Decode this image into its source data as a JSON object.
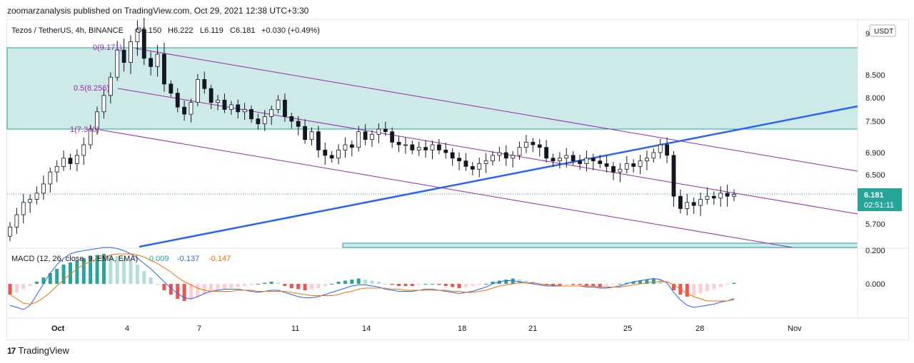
{
  "caption": "zoomarzanalysis published on TradingView.com, Oct 29, 2021 12:38 UTC+3:30",
  "header": {
    "symbol": "Tezos / TetherUS, 4h, BINANCE",
    "o": "O6.150",
    "h": "H6.222",
    "l": "L6.119",
    "c": "C6.181",
    "change": "+0.030 (+0.49%)"
  },
  "currency_badge": "USDT",
  "price_label": {
    "value": "6.181",
    "timer": "02:51:11"
  },
  "macd_header": {
    "name": "MACD (12, 26, close, 9, EMA, EMA)",
    "v1": "0.009",
    "v2": "-0.137",
    "v3": "-0.147"
  },
  "footer": {
    "brand": "TradingView"
  },
  "colors": {
    "up": "#26a69a",
    "down": "#ef5350",
    "zone": "#cde9e8",
    "trend": "#2962ff",
    "channel": "#9c27b0",
    "macd": "#2962ff",
    "signal": "#ff6d00"
  },
  "chart_data": {
    "type": "candlestick",
    "title": "Tezos / TetherUS, 4h, BINANCE",
    "y_axis_labels": [
      "9",
      "8.500",
      "8.000",
      "7.500",
      "6.900",
      "6.500",
      "5.700",
      "0.200"
    ],
    "macd_axis_labels": [
      "0.000"
    ],
    "x_tick_labels": [
      "Oct",
      "4",
      "7",
      "11",
      "14",
      "18",
      "21",
      "25",
      "28",
      "Nov"
    ],
    "fib_labels": [
      "0(9.171)",
      "0.5(8.256)",
      "1(7.340)"
    ],
    "zone": {
      "top": 9.0,
      "bottom": 7.34
    },
    "last_price": 6.181,
    "closes": [
      5.65,
      5.85,
      6.05,
      6.1,
      6.2,
      6.35,
      6.55,
      6.65,
      6.8,
      6.7,
      6.85,
      7.05,
      7.35,
      7.7,
      8.05,
      8.45,
      8.8,
      8.65,
      8.9,
      9.05,
      8.7,
      8.6,
      8.75,
      8.3,
      8.1,
      7.8,
      7.65,
      7.9,
      8.4,
      8.2,
      7.9,
      7.95,
      7.75,
      7.85,
      7.7,
      7.75,
      7.55,
      7.45,
      7.6,
      7.75,
      7.95,
      7.6,
      7.5,
      7.4,
      7.15,
      7.3,
      6.95,
      6.85,
      6.8,
      6.95,
      7.05,
      7.0,
      7.3,
      7.15,
      7.25,
      7.35,
      7.3,
      7.1,
      7.05,
      7.05,
      6.95,
      7.0,
      6.95,
      7.05,
      6.95,
      6.9,
      6.8,
      6.75,
      6.65,
      6.6,
      6.7,
      6.75,
      6.85,
      6.9,
      6.8,
      6.85,
      7.0,
      7.1,
      7.05,
      7.0,
      6.8,
      6.75,
      6.8,
      6.85,
      6.75,
      6.7,
      6.8,
      6.75,
      6.7,
      6.65,
      6.55,
      6.6,
      6.7,
      6.65,
      6.75,
      6.8,
      6.9,
      7.05,
      6.85,
      6.15,
      5.95,
      6.05,
      6.0,
      6.1,
      6.15,
      6.12,
      6.2,
      6.15,
      6.181
    ],
    "macd_hist": [
      -0.1,
      -0.08,
      -0.05,
      -0.02,
      0.02,
      0.06,
      0.1,
      0.14,
      0.18,
      0.2,
      0.22,
      0.24,
      0.26,
      0.27,
      0.28,
      0.27,
      0.26,
      0.24,
      0.22,
      0.18,
      0.12,
      0.06,
      0.0,
      -0.06,
      -0.1,
      -0.14,
      -0.16,
      -0.15,
      -0.12,
      -0.1,
      -0.08,
      -0.06,
      -0.05,
      -0.04,
      -0.03,
      -0.02,
      -0.01,
      0.0,
      0.01,
      0.02,
      0.01,
      -0.02,
      -0.04,
      -0.05,
      -0.06,
      -0.05,
      -0.04,
      -0.02,
      0.0,
      0.02,
      0.03,
      0.04,
      0.05,
      0.04,
      0.03,
      0.02,
      0.0,
      -0.01,
      -0.02,
      -0.02,
      -0.02,
      -0.01,
      0.0,
      0.0,
      -0.01,
      -0.02,
      -0.03,
      -0.04,
      -0.03,
      -0.02,
      -0.01,
      0.0,
      0.02,
      0.03,
      0.04,
      0.05,
      0.04,
      0.03,
      0.02,
      0.0,
      -0.01,
      -0.02,
      -0.02,
      -0.01,
      -0.01,
      -0.01,
      -0.02,
      -0.02,
      -0.03,
      -0.02,
      -0.01,
      0.0,
      0.01,
      0.02,
      0.03,
      0.04,
      0.05,
      0.04,
      0.0,
      -0.06,
      -0.1,
      -0.12,
      -0.11,
      -0.09,
      -0.07,
      -0.05,
      -0.03,
      -0.01,
      0.009
    ],
    "macd_line": [
      -0.2,
      -0.22,
      -0.24,
      -0.2,
      -0.1,
      0.0,
      0.1,
      0.18,
      0.24,
      0.28,
      0.3,
      0.31,
      0.32,
      0.33,
      0.34,
      0.34,
      0.33,
      0.31,
      0.28,
      0.24,
      0.19,
      0.14,
      0.08,
      0.02,
      -0.04,
      -0.09,
      -0.13,
      -0.14,
      -0.12,
      -0.09,
      -0.07,
      -0.06,
      -0.05,
      -0.05,
      -0.05,
      -0.06,
      -0.07,
      -0.08,
      -0.07,
      -0.06,
      -0.06,
      -0.08,
      -0.1,
      -0.12,
      -0.13,
      -0.13,
      -0.12,
      -0.1,
      -0.08,
      -0.06,
      -0.04,
      -0.02,
      -0.01,
      -0.01,
      -0.02,
      -0.03,
      -0.05,
      -0.06,
      -0.07,
      -0.07,
      -0.07,
      -0.06,
      -0.05,
      -0.05,
      -0.06,
      -0.07,
      -0.08,
      -0.09,
      -0.08,
      -0.07,
      -0.05,
      -0.03,
      0.0,
      0.02,
      0.03,
      0.03,
      0.02,
      0.01,
      0.0,
      -0.01,
      -0.02,
      -0.02,
      -0.02,
      -0.02,
      -0.02,
      -0.02,
      -0.03,
      -0.03,
      -0.04,
      -0.04,
      -0.03,
      -0.02,
      0.0,
      0.02,
      0.03,
      0.04,
      0.05,
      0.04,
      0.01,
      -0.08,
      -0.15,
      -0.2,
      -0.22,
      -0.21,
      -0.2,
      -0.19,
      -0.17,
      -0.16,
      -0.137
    ],
    "signal_line": [
      -0.1,
      -0.14,
      -0.18,
      -0.19,
      -0.17,
      -0.13,
      -0.08,
      -0.02,
      0.04,
      0.09,
      0.14,
      0.18,
      0.21,
      0.23,
      0.25,
      0.27,
      0.28,
      0.28,
      0.28,
      0.27,
      0.25,
      0.22,
      0.19,
      0.15,
      0.11,
      0.06,
      0.02,
      -0.01,
      -0.04,
      -0.06,
      -0.07,
      -0.07,
      -0.07,
      -0.07,
      -0.06,
      -0.06,
      -0.06,
      -0.07,
      -0.07,
      -0.07,
      -0.07,
      -0.07,
      -0.08,
      -0.09,
      -0.1,
      -0.11,
      -0.11,
      -0.11,
      -0.11,
      -0.1,
      -0.08,
      -0.07,
      -0.05,
      -0.04,
      -0.04,
      -0.04,
      -0.04,
      -0.05,
      -0.05,
      -0.06,
      -0.06,
      -0.06,
      -0.06,
      -0.06,
      -0.06,
      -0.06,
      -0.07,
      -0.07,
      -0.08,
      -0.08,
      -0.07,
      -0.06,
      -0.04,
      -0.02,
      -0.01,
      0.0,
      0.01,
      0.01,
      0.01,
      0.0,
      -0.01,
      -0.01,
      -0.02,
      -0.02,
      -0.02,
      -0.02,
      -0.02,
      -0.02,
      -0.03,
      -0.03,
      -0.03,
      -0.03,
      -0.02,
      -0.01,
      0.0,
      0.01,
      0.02,
      0.02,
      0.02,
      -0.01,
      -0.05,
      -0.09,
      -0.12,
      -0.14,
      -0.16,
      -0.16,
      -0.16,
      -0.16,
      -0.147
    ]
  }
}
